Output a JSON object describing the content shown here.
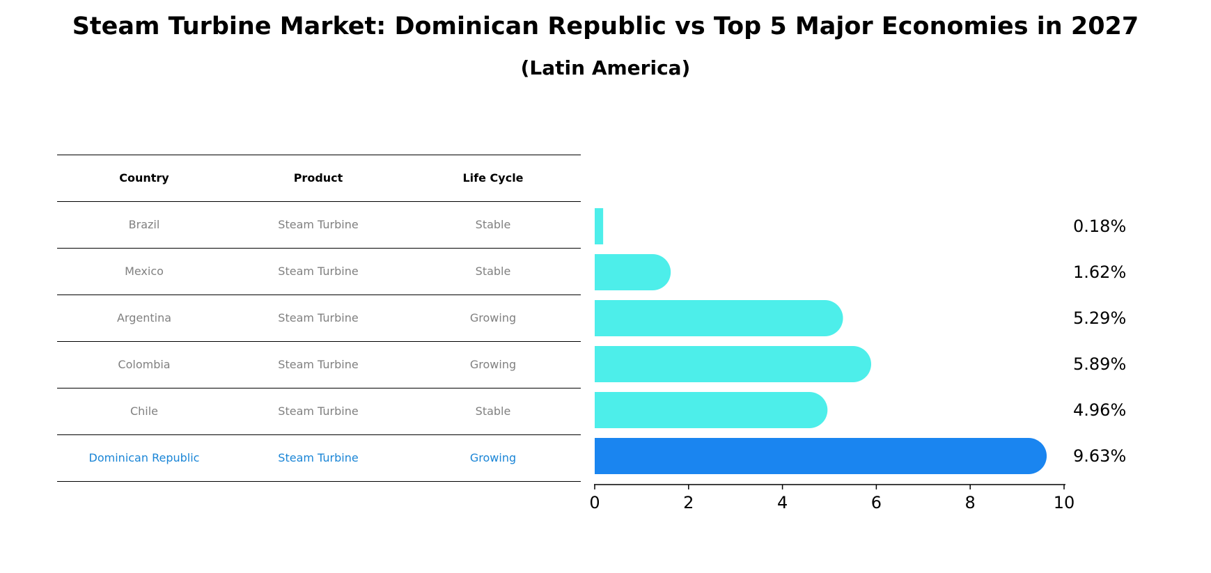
{
  "chart_data": {
    "type": "bar",
    "orientation": "horizontal",
    "title": "Steam Turbine Market: Dominican Republic vs Top 5 Major Economies in 2027",
    "subtitle": "(Latin America)",
    "xlim": [
      0,
      10
    ],
    "xticks": [
      "0",
      "2",
      "4",
      "6",
      "8",
      "10"
    ],
    "categories": [
      "Brazil",
      "Mexico",
      "Argentina",
      "Colombia",
      "Chile",
      "Dominican Republic"
    ],
    "values": [
      0.18,
      1.62,
      5.29,
      5.89,
      4.96,
      9.63
    ],
    "value_labels": [
      "0.18%",
      "1.62%",
      "5.29%",
      "5.89%",
      "4.96%",
      "9.63%"
    ],
    "highlight": "Dominican Republic",
    "colors": {
      "default": "#4deeea",
      "highlight": "#1a85f0",
      "highlight_text": "#1a85d6",
      "muted_text": "#808080"
    }
  },
  "table": {
    "headers": [
      "Country",
      "Product",
      "Life Cycle"
    ],
    "rows": [
      [
        "Brazil",
        "Steam Turbine",
        "Stable"
      ],
      [
        "Mexico",
        "Steam Turbine",
        "Stable"
      ],
      [
        "Argentina",
        "Steam Turbine",
        "Growing"
      ],
      [
        "Colombia",
        "Steam Turbine",
        "Growing"
      ],
      [
        "Chile",
        "Steam Turbine",
        "Stable"
      ],
      [
        "Dominican Republic",
        "Steam Turbine",
        "Growing"
      ]
    ]
  }
}
